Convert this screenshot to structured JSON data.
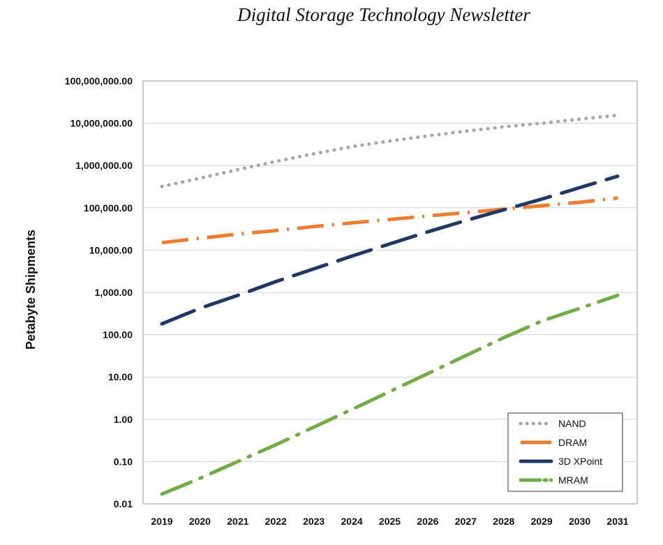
{
  "header": {
    "title": "Digital Storage Technology Newsletter"
  },
  "chart_data": {
    "type": "line",
    "title": "",
    "xlabel": "",
    "ylabel": "Petabyte Shipments",
    "yscale": "log",
    "ylim": [
      0.01,
      100000000
    ],
    "xlim": [
      2019,
      2031
    ],
    "grid": "horizontal",
    "legend_position": "bottom-right",
    "x": [
      2019,
      2020,
      2021,
      2022,
      2023,
      2024,
      2025,
      2026,
      2027,
      2028,
      2029,
      2030,
      2031
    ],
    "x_tick_labels": [
      "2019",
      "2020",
      "2021",
      "2022",
      "2023",
      "2024",
      "2025",
      "2026",
      "2027",
      "2028",
      "2029",
      "2030",
      "2031"
    ],
    "y_tick_labels": [
      "0.01",
      "0.10",
      "1.00",
      "10.00",
      "100.00",
      "1,000.00",
      "10,000.00",
      "100,000.00",
      "1,000,000.00",
      "10,000,000.00",
      "100,000,000.00"
    ],
    "series": [
      {
        "name": "NAND",
        "color": "#a6a6a6",
        "style": "dotted",
        "values": [
          320000,
          500000,
          800000,
          1250000,
          1900000,
          2800000,
          3800000,
          5000000,
          6500000,
          8200000,
          10000000,
          12500000,
          15500000
        ]
      },
      {
        "name": "DRAM",
        "color": "#ed7d31",
        "style": "dash-dot",
        "values": [
          15000,
          19000,
          24000,
          29000,
          36000,
          44000,
          53000,
          64000,
          77000,
          93000,
          112000,
          135000,
          170000
        ]
      },
      {
        "name": "3D XPoint",
        "color": "#203864",
        "style": "long-dash",
        "values": [
          180,
          420,
          850,
          1800,
          3600,
          7200,
          14000,
          27000,
          50000,
          90000,
          160000,
          300000,
          560000
        ]
      },
      {
        "name": "MRAM",
        "color": "#70ad47",
        "style": "long-dash-dot",
        "values": [
          0.017,
          0.04,
          0.1,
          0.25,
          0.65,
          1.7,
          4.5,
          12,
          32,
          85,
          210,
          420,
          850
        ]
      }
    ]
  }
}
